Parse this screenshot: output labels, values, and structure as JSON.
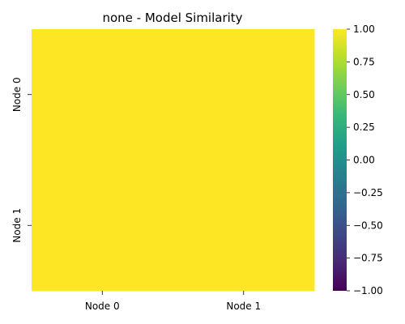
{
  "chart_data": {
    "type": "heatmap",
    "title": "none - Model Similarity",
    "x_categories": [
      "Node 0",
      "Node 1"
    ],
    "y_categories": [
      "Node 0",
      "Node 1"
    ],
    "values": [
      [
        1.0,
        1.0
      ],
      [
        1.0,
        1.0
      ]
    ],
    "colorbar": {
      "vmin": -1.0,
      "vmax": 1.0,
      "ticks": [
        {
          "value": 1.0,
          "label": "1.00"
        },
        {
          "value": 0.75,
          "label": "0.75"
        },
        {
          "value": 0.5,
          "label": "0.50"
        },
        {
          "value": 0.25,
          "label": "0.25"
        },
        {
          "value": 0.0,
          "label": "0.00"
        },
        {
          "value": -0.25,
          "label": "−0.25"
        },
        {
          "value": -0.5,
          "label": "−0.50"
        },
        {
          "value": -0.75,
          "label": "−0.75"
        },
        {
          "value": -1.0,
          "label": "−1.00"
        }
      ]
    },
    "colormap": [
      "#440154",
      "#482878",
      "#3e4989",
      "#31688e",
      "#26828e",
      "#1f9e89",
      "#35b779",
      "#6ece58",
      "#b5de2b",
      "#fde725"
    ],
    "grid": false,
    "legend": "colorbar-right"
  }
}
